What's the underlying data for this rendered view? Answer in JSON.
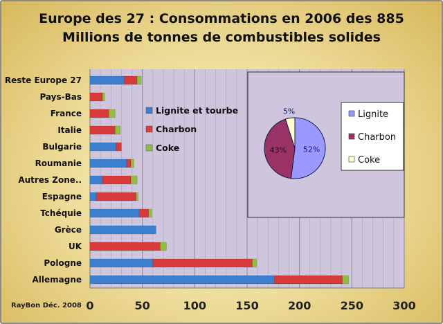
{
  "chart_data": [
    {
      "type": "bar",
      "orientation": "horizontal",
      "stacked": true,
      "title_line1": "Europe des 27 : Consommations  en 2006 des 885",
      "title_line2": "Millions de tonnes de combustibles solides",
      "categories": [
        "Reste Europe 27",
        "Pays-Bas",
        "France",
        "Italie",
        "Bulgarie",
        "Roumanie",
        "Autres Zone..",
        "Espagne",
        "Tchéquie",
        "Grèce",
        "UK",
        "Pologne",
        "Allemagne"
      ],
      "series": [
        {
          "name": "Lignite et tourbe",
          "color": "#3a7fd0",
          "values": [
            33,
            0,
            0,
            0,
            25,
            35,
            12,
            6,
            47,
            63,
            0,
            60,
            176
          ]
        },
        {
          "name": "Charbon",
          "color": "#d83a3a",
          "values": [
            12,
            12,
            18,
            24,
            5,
            4,
            27,
            38,
            9,
            0,
            67,
            95,
            65
          ]
        },
        {
          "name": "Coke",
          "color": "#8fc03a",
          "values": [
            4,
            2,
            6,
            5,
            0,
            3,
            6,
            2,
            3,
            0,
            6,
            4,
            6
          ]
        }
      ],
      "xlim": [
        0,
        300
      ],
      "xticks": [
        0,
        50,
        100,
        150,
        200,
        250,
        300
      ],
      "legend": "center-left"
    },
    {
      "type": "pie",
      "labels": [
        "Lignite",
        "Charbon",
        "Coke"
      ],
      "values": [
        52,
        43,
        5
      ],
      "value_labels": [
        "52%",
        "43%",
        "5%"
      ],
      "colors": [
        "#9999ff",
        "#993366",
        "#ffffcc"
      ],
      "legend": "right"
    }
  ],
  "credit": "RayBon Déc. 2008"
}
